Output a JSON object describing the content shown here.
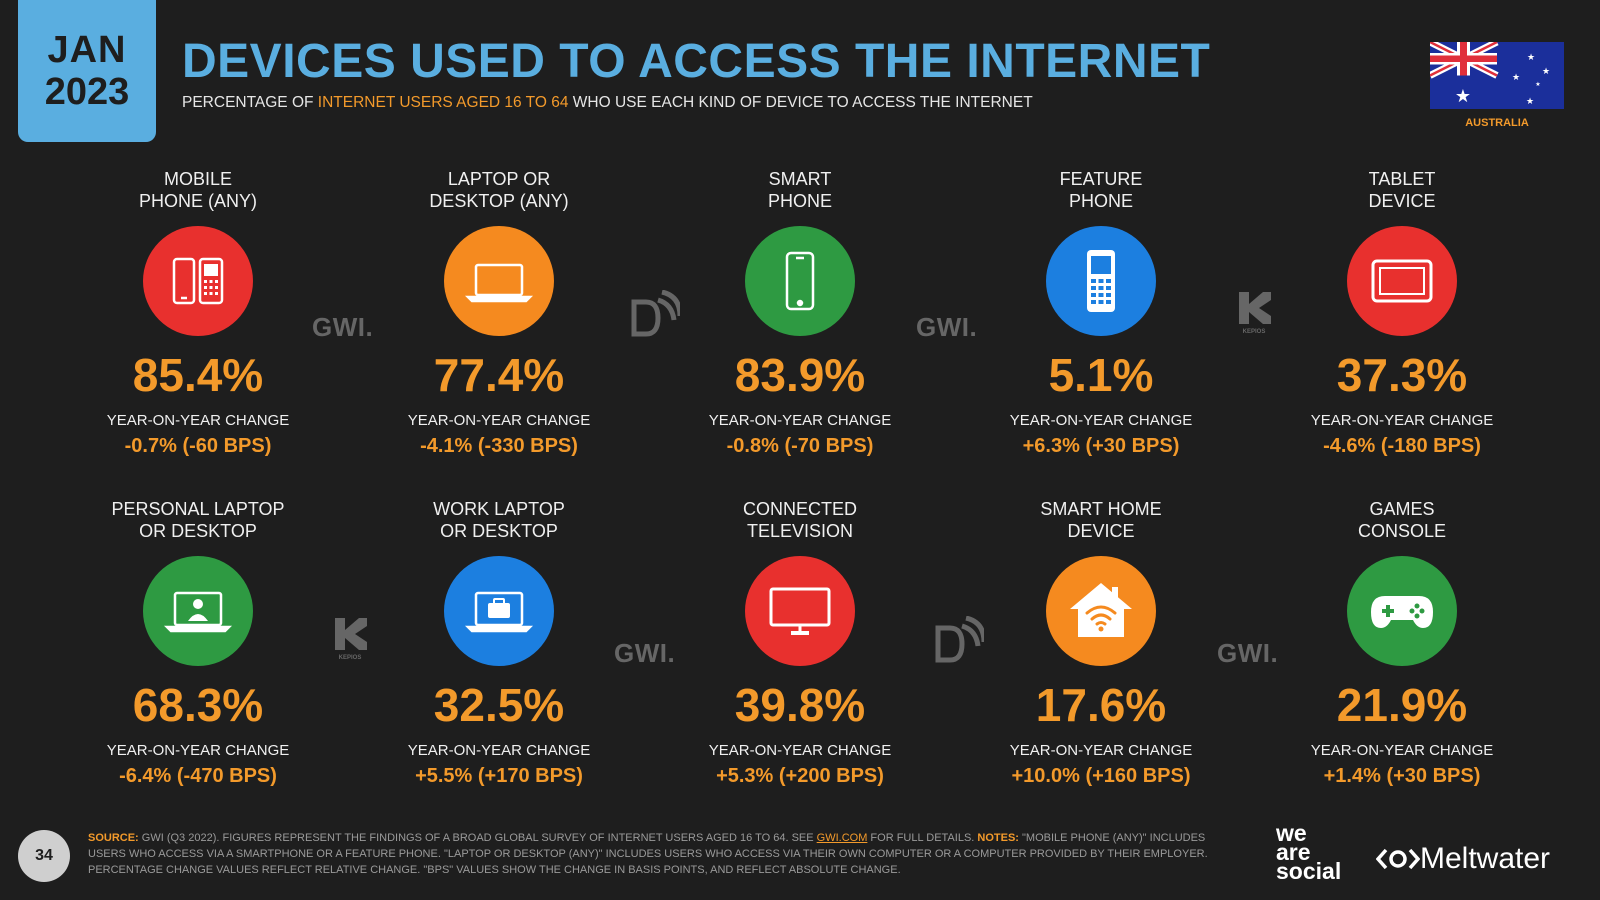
{
  "header": {
    "date_month": "JAN",
    "date_year": "2023",
    "title": "DEVICES USED TO ACCESS THE INTERNET",
    "subtitle_pre": "PERCENTAGE OF ",
    "subtitle_highlight": "INTERNET USERS AGED 16 TO 64",
    "subtitle_post": " WHO USE EACH KIND OF DEVICE TO ACCESS THE INTERNET",
    "country": "AUSTRALIA"
  },
  "cards": [
    {
      "label_1": "MOBILE",
      "label_2": "PHONE (ANY)",
      "value": "85.4%",
      "yoy_label": "YEAR-ON-YEAR CHANGE",
      "yoy_value": "-0.7% (-60 BPS)",
      "color": "#e8302e",
      "icon": "mobile-phones-icon"
    },
    {
      "label_1": "LAPTOP OR",
      "label_2": "DESKTOP (ANY)",
      "value": "77.4%",
      "yoy_label": "YEAR-ON-YEAR CHANGE",
      "yoy_value": "-4.1% (-330 BPS)",
      "color": "#f58a1f",
      "icon": "laptop-icon"
    },
    {
      "label_1": "SMART",
      "label_2": "PHONE",
      "value": "83.9%",
      "yoy_label": "YEAR-ON-YEAR CHANGE",
      "yoy_value": "-0.8% (-70 BPS)",
      "color": "#2e9a42",
      "icon": "smartphone-icon"
    },
    {
      "label_1": "FEATURE",
      "label_2": "PHONE",
      "value": "5.1%",
      "yoy_label": "YEAR-ON-YEAR CHANGE",
      "yoy_value": "+6.3% (+30 BPS)",
      "color": "#1c7fe0",
      "icon": "feature-phone-icon"
    },
    {
      "label_1": "TABLET",
      "label_2": "DEVICE",
      "value": "37.3%",
      "yoy_label": "YEAR-ON-YEAR CHANGE",
      "yoy_value": "-4.6% (-180 BPS)",
      "color": "#e8302e",
      "icon": "tablet-icon"
    },
    {
      "label_1": "PERSONAL LAPTOP",
      "label_2": "OR DESKTOP",
      "value": "68.3%",
      "yoy_label": "YEAR-ON-YEAR CHANGE",
      "yoy_value": "-6.4% (-470 BPS)",
      "color": "#2e9a42",
      "icon": "personal-laptop-icon"
    },
    {
      "label_1": "WORK LAPTOP",
      "label_2": "OR DESKTOP",
      "value": "32.5%",
      "yoy_label": "YEAR-ON-YEAR CHANGE",
      "yoy_value": "+5.5% (+170 BPS)",
      "color": "#1c7fe0",
      "icon": "work-laptop-icon"
    },
    {
      "label_1": "CONNECTED",
      "label_2": "TELEVISION",
      "value": "39.8%",
      "yoy_label": "YEAR-ON-YEAR CHANGE",
      "yoy_value": "+5.3% (+200 BPS)",
      "color": "#e8302e",
      "icon": "television-icon"
    },
    {
      "label_1": "SMART HOME",
      "label_2": "DEVICE",
      "value": "17.6%",
      "yoy_label": "YEAR-ON-YEAR CHANGE",
      "yoy_value": "+10.0% (+160 BPS)",
      "color": "#f58a1f",
      "icon": "smart-home-icon"
    },
    {
      "label_1": "GAMES",
      "label_2": "CONSOLE",
      "value": "21.9%",
      "yoy_label": "YEAR-ON-YEAR CHANGE",
      "yoy_value": "+1.4% (+30 BPS)",
      "color": "#2e9a42",
      "icon": "gamepad-icon"
    }
  ],
  "watermarks": {
    "gwi": "GWI.",
    "kepios": "KEPIOS"
  },
  "footer": {
    "page_number": "34",
    "source_label": "SOURCE:",
    "source_text": " GWI (Q3 2022). FIGURES REPRESENT THE FINDINGS OF A BROAD GLOBAL SURVEY OF INTERNET USERS AGED 16 TO 64. SEE ",
    "source_link": "GWI.COM",
    "source_after": " FOR FULL DETAILS. ",
    "notes_label": "NOTES:",
    "notes_text": " \"MOBILE PHONE (ANY)\" INCLUDES USERS WHO ACCESS VIA A SMARTPHONE OR A FEATURE PHONE. \"LAPTOP OR DESKTOP (ANY)\" INCLUDES USERS WHO ACCESS VIA THEIR OWN COMPUTER OR A COMPUTER PROVIDED BY THEIR EMPLOYER. PERCENTAGE CHANGE VALUES REFLECT RELATIVE CHANGE. \"BPS\" VALUES SHOW THE CHANGE IN BASIS POINTS, AND REFLECT ABSOLUTE CHANGE.",
    "logo_we": "we",
    "logo_are": "are",
    "logo_social": "social",
    "logo_meltwater": "Meltwater"
  }
}
